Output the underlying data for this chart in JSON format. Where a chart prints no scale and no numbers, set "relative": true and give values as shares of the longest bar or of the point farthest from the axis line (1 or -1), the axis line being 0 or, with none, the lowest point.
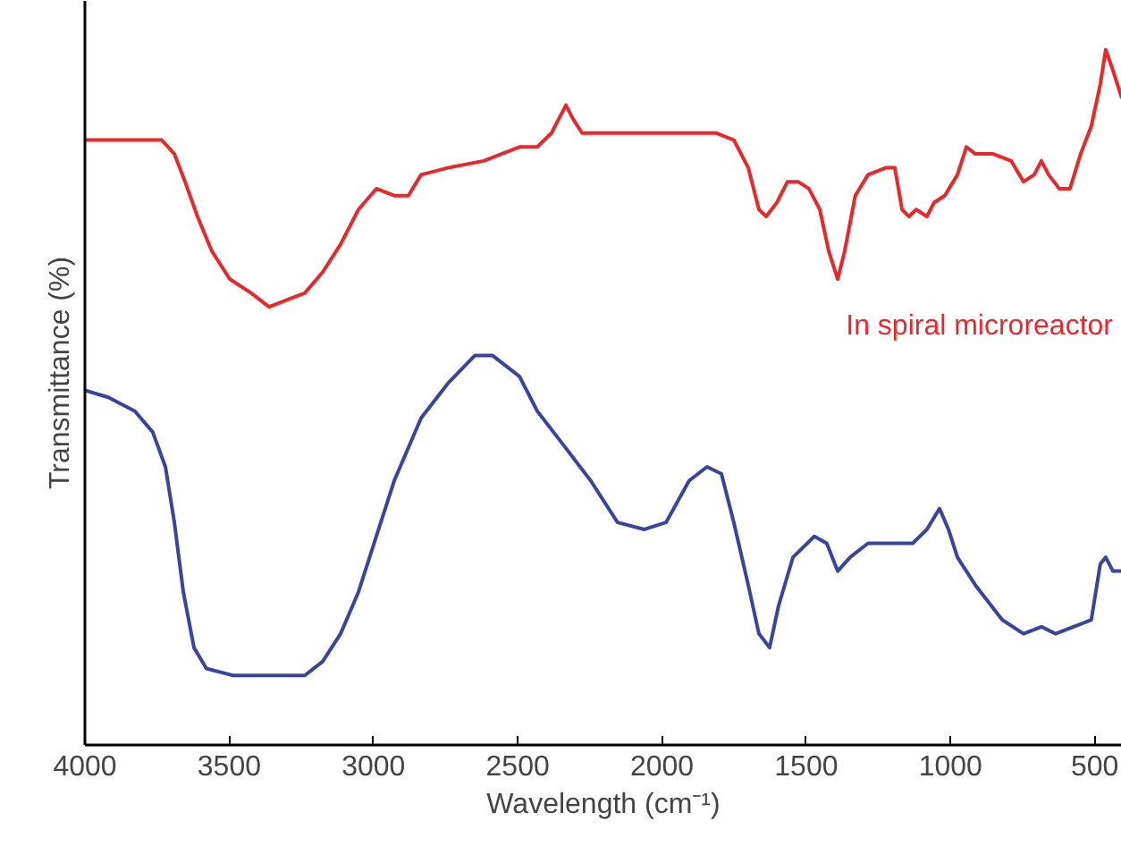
{
  "chart_data": {
    "type": "line",
    "relative": true,
    "xlabel": "Wavelength (cm⁻¹)",
    "ylabel": "Transmittance (%)",
    "xlim": [
      4000,
      406
    ],
    "xticks": [
      4000,
      3500,
      3000,
      2500,
      2000,
      1500,
      1000,
      500
    ],
    "grid": false,
    "marker": "none",
    "line_style": "solid",
    "series": [
      {
        "name": "In spiral microreactor",
        "color": "#e8282b",
        "x": [
          4000,
          3919,
          3827,
          3734,
          3690,
          3653,
          3610,
          3560,
          3498,
          3424,
          3362,
          3300,
          3238,
          3176,
          3114,
          3052,
          2990,
          2928,
          2879,
          2835,
          2742,
          2618,
          2494,
          2432,
          2383,
          2358,
          2333,
          2308,
          2277,
          2185,
          2061,
          1968,
          1906,
          1813,
          1751,
          1701,
          1664,
          1639,
          1602,
          1565,
          1528,
          1491,
          1453,
          1422,
          1391,
          1367,
          1330,
          1286,
          1224,
          1193,
          1168,
          1144,
          1119,
          1082,
          1057,
          1020,
          976,
          945,
          914,
          852,
          790,
          747,
          710,
          685,
          660,
          623,
          586,
          549,
          512,
          481,
          462,
          437,
          406
        ],
        "values": [
          0.87,
          0.87,
          0.87,
          0.87,
          0.85,
          0.81,
          0.76,
          0.71,
          0.67,
          0.65,
          0.63,
          0.64,
          0.65,
          0.68,
          0.72,
          0.77,
          0.8,
          0.79,
          0.79,
          0.82,
          0.83,
          0.84,
          0.86,
          0.86,
          0.88,
          0.9,
          0.92,
          0.9,
          0.88,
          0.88,
          0.88,
          0.88,
          0.88,
          0.88,
          0.87,
          0.83,
          0.77,
          0.76,
          0.78,
          0.81,
          0.81,
          0.8,
          0.77,
          0.71,
          0.67,
          0.71,
          0.79,
          0.82,
          0.83,
          0.83,
          0.77,
          0.76,
          0.77,
          0.76,
          0.78,
          0.79,
          0.82,
          0.86,
          0.85,
          0.85,
          0.84,
          0.81,
          0.82,
          0.84,
          0.82,
          0.8,
          0.8,
          0.85,
          0.89,
          0.95,
          1.0,
          0.97,
          0.93
        ]
      },
      {
        "color": "#3a43a0",
        "x": [
          4000,
          3919,
          3827,
          3765,
          3721,
          3690,
          3659,
          3622,
          3579,
          3486,
          3362,
          3238,
          3176,
          3114,
          3052,
          2990,
          2928,
          2835,
          2742,
          2649,
          2587,
          2494,
          2432,
          2339,
          2247,
          2154,
          2061,
          1986,
          1906,
          1844,
          1794,
          1751,
          1701,
          1664,
          1627,
          1596,
          1546,
          1472,
          1429,
          1391,
          1348,
          1286,
          1193,
          1131,
          1082,
          1038,
          1007,
          976,
          914,
          821,
          747,
          685,
          636,
          574,
          512,
          481,
          462,
          437,
          406
        ],
        "values": [
          0.51,
          0.5,
          0.48,
          0.45,
          0.4,
          0.32,
          0.22,
          0.14,
          0.11,
          0.1,
          0.1,
          0.1,
          0.12,
          0.16,
          0.22,
          0.3,
          0.38,
          0.47,
          0.52,
          0.56,
          0.56,
          0.53,
          0.48,
          0.43,
          0.38,
          0.32,
          0.31,
          0.32,
          0.38,
          0.4,
          0.39,
          0.32,
          0.23,
          0.16,
          0.14,
          0.2,
          0.27,
          0.3,
          0.29,
          0.25,
          0.27,
          0.29,
          0.29,
          0.29,
          0.31,
          0.34,
          0.31,
          0.27,
          0.23,
          0.18,
          0.16,
          0.17,
          0.16,
          0.17,
          0.18,
          0.26,
          0.27,
          0.25,
          0.25
        ]
      }
    ]
  }
}
